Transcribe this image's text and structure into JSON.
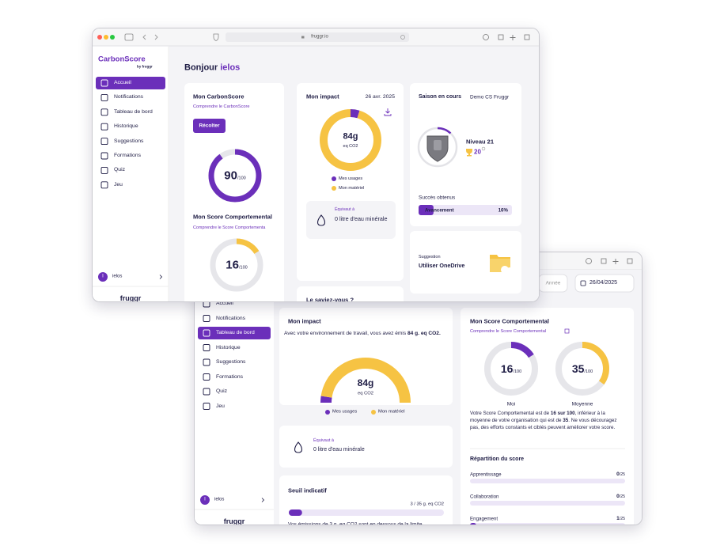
{
  "front": {
    "url": "fruggr.io",
    "brand": "CarbonScore",
    "brand_sub": "by fruggr",
    "nav": [
      "Accueil",
      "Notifications",
      "Tableau de bord",
      "Historique",
      "Suggestions",
      "Formations",
      "Quiz",
      "Jeu"
    ],
    "user": {
      "initial": "I",
      "name": "ielos"
    },
    "footer_logo": "fruggr",
    "greeting": [
      "Bonjour ",
      "ielos"
    ],
    "carbon_score": {
      "title": "Mon CarbonScore",
      "link": "Comprendre le CarbonScore",
      "button": "Récolter",
      "score": 90,
      "max": {
        "value": 100,
        "label": "/100"
      },
      "color": "#6b2fba"
    },
    "behavior": {
      "title": "Mon Score Comportemental",
      "link": "Comprendre le Score Comportementa",
      "score": 16,
      "max": {
        "value": 100,
        "label": "/100"
      },
      "color": "#f6c343"
    },
    "impact": {
      "title": "Mon impact",
      "date": "26 avr. 2025",
      "total": 84,
      "unit": "g",
      "unit_label": "eq CO2",
      "series": [
        {
          "name": "Mes usages",
          "color": "#6b2fba",
          "value": 4
        },
        {
          "name": "Mon matériel",
          "color": "#f6c343",
          "value": 80
        }
      ],
      "equiv_label": "Équivaut à",
      "equiv": "0 litre d'eau minérale"
    },
    "tip_title": "Le saviez-vous ?",
    "season": {
      "title": "Saison en cours",
      "name": "Demo CS Fruggr",
      "level": "Niveau 21",
      "trophies": 20,
      "success_title": "Succès obtenus",
      "progress_label": "Avancement",
      "progress": {
        "value": 16,
        "label": "16%"
      }
    },
    "suggestion": {
      "label": "Suggestion",
      "title": "Utiliser OneDrive"
    }
  },
  "back": {
    "period": "Année",
    "date": "26/04/2025",
    "nav": [
      "Accueil",
      "Notifications",
      "Tableau de bord",
      "Historique",
      "Suggestions",
      "Formations",
      "Quiz",
      "Jeu"
    ],
    "user": {
      "initial": "I",
      "name": "ielos"
    },
    "footer_logo": "fruggr",
    "impact": {
      "title": "Mon impact",
      "text": [
        "Avec votre environnement de travail, vous avez émis ",
        "84 g. eq CO2."
      ],
      "total": 84,
      "unit": "g",
      "unit_label": "eq CO2",
      "series": [
        {
          "name": "Mes usages",
          "color": "#6b2fba",
          "value": 4
        },
        {
          "name": "Mon matériel",
          "color": "#f6c343",
          "value": 80
        }
      ]
    },
    "equiv_label": "Équivaut à",
    "equiv": "0 litre d'eau minérale",
    "threshold": {
      "title": "Seuil indicatif",
      "value": 3,
      "max": 35,
      "label": "3 / 35 g. eq CO2",
      "note": "Vos émissions de 3 g. eq CO2 sont en dessous de la limite"
    },
    "behavior": {
      "title": "Mon Score Comportemental",
      "link": "Comprendre le Score Comportemental",
      "scores": [
        {
          "label": "Moi",
          "score": 16,
          "color": "#6b2fba"
        },
        {
          "label": "Moyenne",
          "score": 35,
          "color": "#f6c343"
        }
      ],
      "max": {
        "value": 100,
        "label": "/100"
      },
      "text": [
        "Votre Score Comportemental est de ",
        "16 sur 100",
        ", inférieur à la moyenne de votre organisation qui est de ",
        "35",
        ". Ne vous découragez pas, des efforts constants et ciblés peuvent améliorer votre score."
      ],
      "breakdown_title": "Répartition du score",
      "breakdown": [
        {
          "name": "Apprentissage",
          "value": 0,
          "max": {
            "value": 25,
            "label": "/25"
          }
        },
        {
          "name": "Collaboration",
          "value": 0,
          "max": {
            "value": 25,
            "label": "/25"
          }
        },
        {
          "name": "Engagement",
          "value": 1,
          "max": {
            "value": 25,
            "label": "/25"
          }
        }
      ]
    }
  }
}
